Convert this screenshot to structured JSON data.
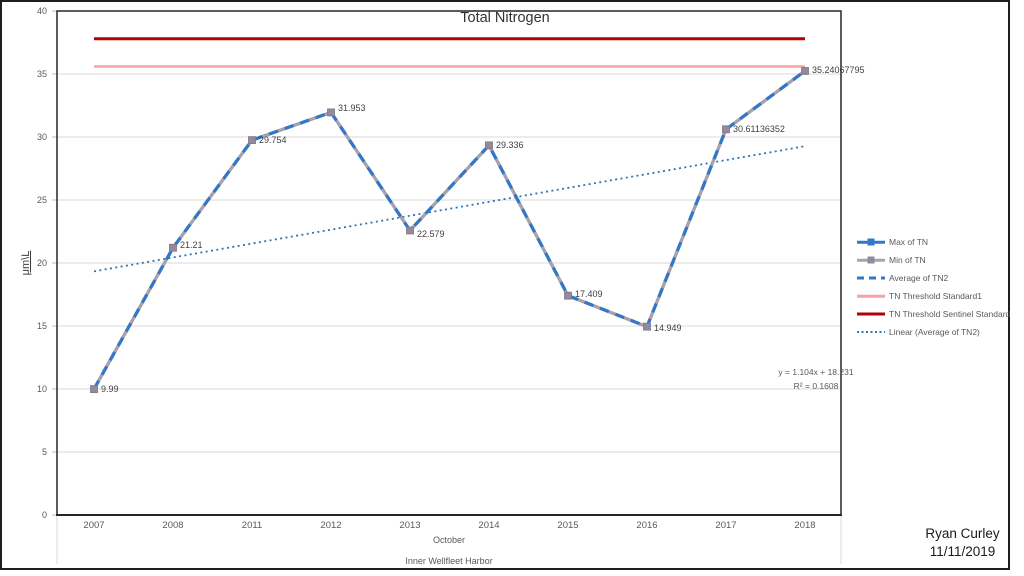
{
  "title": "Total Nitrogen",
  "author": {
    "name": "Ryan Curley",
    "date": "11/11/2019"
  },
  "annotation": {
    "equation": "y = 1.104x + 18.231",
    "r_squared": "R² = 0.1608"
  },
  "colors": {
    "series_blue": "#3277C8",
    "series_gray_line": "#A9A1AA",
    "marker_gray": "#95899C",
    "threshold_pink": "#F5A3A3",
    "threshold_dark_red": "#B40000",
    "trendline_blue": "#2E75B6",
    "gridline": "#D9D9D9",
    "axis": "#262626",
    "tick_text": "#595959"
  },
  "chart_data": {
    "type": "line",
    "title": "Total Nitrogen",
    "ylabel": "μm\\L",
    "ylim": [
      0,
      40
    ],
    "ytick_step": 5,
    "grid": true,
    "legend_position": "right",
    "categories": [
      "2007",
      "2008",
      "2011",
      "2012",
      "2013",
      "2014",
      "2015",
      "2016",
      "2017",
      "2018"
    ],
    "xlabel_rows": [
      "October",
      "Inner Wellfleet Harbor"
    ],
    "series": [
      {
        "name": "Max of TN",
        "style": "solid-marker",
        "color": "#3277C8",
        "values": [
          9.99,
          21.21,
          29.754,
          31.953,
          22.579,
          29.336,
          17.409,
          14.949,
          30.61136352,
          35.24067795
        ]
      },
      {
        "name": "Min of TN",
        "style": "solid-marker",
        "color": "#A9A1AA",
        "values": [
          9.99,
          21.21,
          29.754,
          31.953,
          22.579,
          29.336,
          17.409,
          14.949,
          30.61136352,
          35.24067795
        ]
      },
      {
        "name": "Average of TN2",
        "style": "dashed",
        "color": "#3277C8",
        "values": [
          9.99,
          21.21,
          29.754,
          31.953,
          22.579,
          29.336,
          17.409,
          14.949,
          30.61136352,
          35.24067795
        ]
      }
    ],
    "point_labels": [
      "9.99",
      "21.21",
      "29.754",
      "31.953",
      "22.579",
      "29.336",
      "17.409",
      "14.949",
      "30.61136352",
      "35.24067795"
    ],
    "thresholds": [
      {
        "name": "TN Threshold Standard1",
        "value": 35.6,
        "color": "#F5A3A3",
        "width": 2.5
      },
      {
        "name": "TN Threshold Sentinel Standard",
        "value": 37.8,
        "color": "#B40000",
        "width": 3
      }
    ],
    "trendline": {
      "name": "Linear (Average of TN2)",
      "slope": 1.104,
      "intercept": 18.231,
      "r2": 0.1608,
      "color": "#2E75B6"
    },
    "legend": [
      {
        "label": "Max of TN",
        "style": "line-marker",
        "color": "#3277C8",
        "marker": "#3277C8"
      },
      {
        "label": "Min of TN",
        "style": "line-marker",
        "color": "#A6A6A6",
        "marker": "#95899C"
      },
      {
        "label": "Average of TN2",
        "style": "dashed",
        "color": "#3277C8"
      },
      {
        "label": "TN Threshold Standard1",
        "style": "solid",
        "color": "#F5A3A3",
        "thickness": 2.5
      },
      {
        "label": "TN Threshold Sentinel Standard",
        "style": "solid",
        "color": "#B40000",
        "thickness": 3
      },
      {
        "label": "Linear (Average of TN2)",
        "style": "dotted",
        "color": "#2E75B6"
      }
    ]
  }
}
